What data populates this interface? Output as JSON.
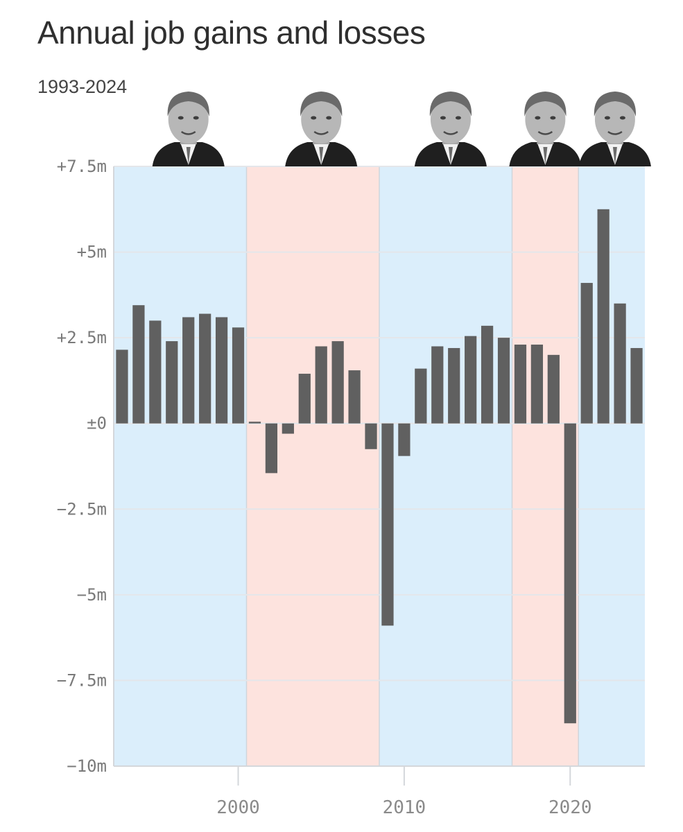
{
  "header": {
    "title": "Annual job gains and losses",
    "subtitle": "1993-2024"
  },
  "chart_data": {
    "type": "bar",
    "title": "Annual job gains and losses",
    "subtitle": "1993-2024",
    "unit": "millions of jobs",
    "x": [
      1993,
      1994,
      1995,
      1996,
      1997,
      1998,
      1999,
      2000,
      2001,
      2002,
      2003,
      2004,
      2005,
      2006,
      2007,
      2008,
      2009,
      2010,
      2011,
      2012,
      2013,
      2014,
      2015,
      2016,
      2017,
      2018,
      2019,
      2020,
      2021,
      2022,
      2023,
      2024
    ],
    "values": [
      2.15,
      3.45,
      3.0,
      2.4,
      3.1,
      3.2,
      3.1,
      2.8,
      0.05,
      -1.45,
      -0.3,
      1.45,
      2.25,
      2.4,
      1.55,
      -0.75,
      -5.9,
      -0.95,
      1.6,
      2.25,
      2.2,
      2.55,
      2.85,
      2.5,
      2.3,
      2.3,
      2.0,
      -8.75,
      4.1,
      6.25,
      3.5,
      2.2
    ],
    "ylim": [
      -10,
      7.5
    ],
    "xlim": [
      1992.5,
      2024.5
    ],
    "y_ticks": [
      {
        "value": 7.5,
        "label": "+7.5m"
      },
      {
        "value": 5,
        "label": "+5m"
      },
      {
        "value": 2.5,
        "label": "+2.5m"
      },
      {
        "value": 0,
        "label": "±0"
      },
      {
        "value": -2.5,
        "label": "−2.5m"
      },
      {
        "value": -5,
        "label": "−5m"
      },
      {
        "value": -7.5,
        "label": "−7.5m"
      },
      {
        "value": -10,
        "label": "−10m"
      }
    ],
    "x_ticks": [
      {
        "value": 2000,
        "label": "2000"
      },
      {
        "value": 2010,
        "label": "2010"
      },
      {
        "value": 2020,
        "label": "2020"
      }
    ],
    "grid": true,
    "bar_color": "#606060",
    "background_bands": [
      {
        "from": 1992.5,
        "to": 2000.5,
        "party": "democratic",
        "color": "#dbeefb"
      },
      {
        "from": 2000.5,
        "to": 2008.5,
        "party": "republican",
        "color": "#fde3de"
      },
      {
        "from": 2008.5,
        "to": 2016.5,
        "party": "democratic",
        "color": "#dbeefb"
      },
      {
        "from": 2016.5,
        "to": 2020.5,
        "party": "republican",
        "color": "#fde3de"
      },
      {
        "from": 2020.5,
        "to": 2024.5,
        "party": "democratic",
        "color": "#dbeefb"
      }
    ],
    "portraits": [
      {
        "name": "president-portrait-1",
        "center": 1997
      },
      {
        "name": "president-portrait-2",
        "center": 2005
      },
      {
        "name": "president-portrait-3",
        "center": 2012.8
      },
      {
        "name": "president-portrait-4",
        "center": 2018.5
      },
      {
        "name": "president-portrait-5",
        "center": 2022.7
      }
    ]
  }
}
